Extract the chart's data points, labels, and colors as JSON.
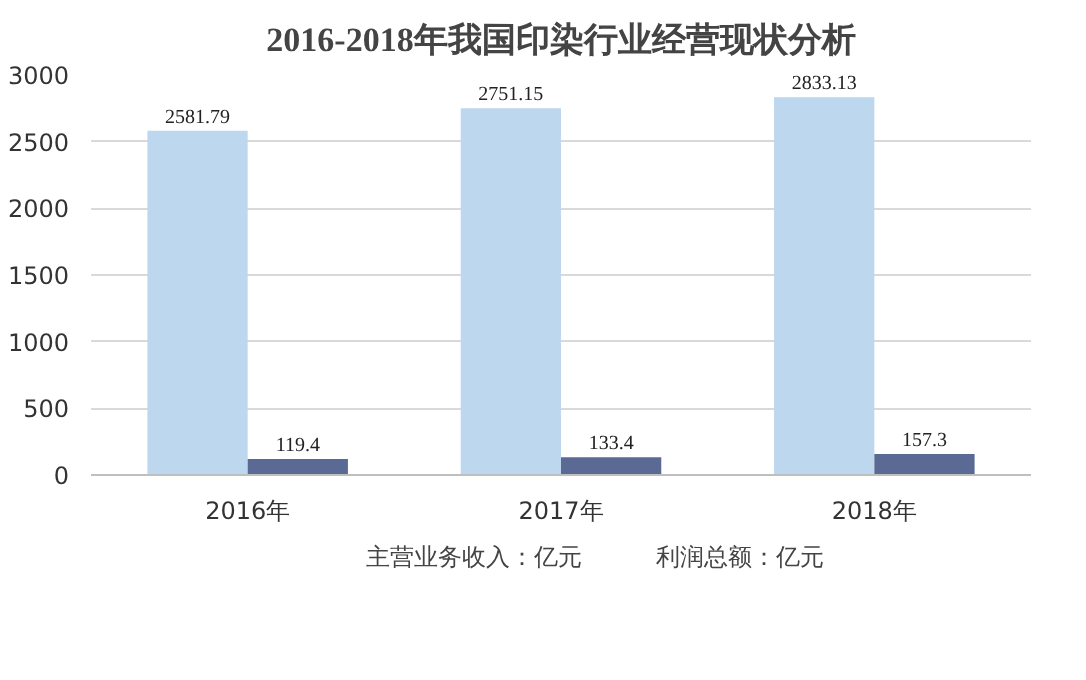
{
  "chart_data": {
    "type": "bar",
    "title": "2016-2018年我国印染行业经营现状分析",
    "categories": [
      "2016年",
      "2017年",
      "2018年"
    ],
    "series": [
      {
        "name": "主营业务收入：亿元",
        "color": "#bdd7ee",
        "values": [
          2581.79,
          2751.15,
          2833.13
        ]
      },
      {
        "name": "利润总额：亿元",
        "color": "#5b6a94",
        "values": [
          119.4,
          133.4,
          157.3
        ]
      }
    ],
    "ylim": [
      0,
      3000
    ],
    "yticks": [
      0,
      500,
      1000,
      1500,
      2000,
      2500,
      3000
    ],
    "grid": "y",
    "legend": "bottom",
    "data_labels": true
  }
}
